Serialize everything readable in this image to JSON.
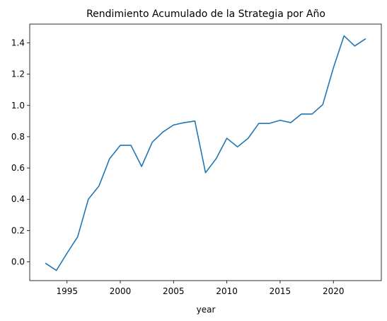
{
  "chart_data": {
    "type": "line",
    "title": "Rendimiento Acumulado de la Strategia por Año",
    "xlabel": "year",
    "ylabel": "",
    "xlim": [
      1991.5,
      2024.5
    ],
    "ylim": [
      -0.12,
      1.52
    ],
    "grid": false,
    "x_ticks": [
      1995,
      2000,
      2005,
      2010,
      2015,
      2020
    ],
    "y_ticks": [
      0.0,
      0.2,
      0.4,
      0.6,
      0.8,
      1.0,
      1.2,
      1.4
    ],
    "x_tick_labels": [
      "1995",
      "2000",
      "2005",
      "2010",
      "2015",
      "2020"
    ],
    "y_tick_labels": [
      "0.0",
      "0.2",
      "0.4",
      "0.6",
      "0.8",
      "1.0",
      "1.2",
      "1.4"
    ],
    "line_color": "#1f77b4",
    "series": [
      {
        "x": [
          1993,
          1994,
          1995,
          1996,
          1997,
          1998,
          1999,
          2000,
          2001,
          2002,
          2003,
          2004,
          2005,
          2006,
          2007,
          2008,
          2009,
          2010,
          2011,
          2012,
          2013,
          2014,
          2015,
          2016,
          2017,
          2018,
          2019,
          2020,
          2021,
          2022,
          2023
        ],
        "values": [
          -0.01,
          -0.055,
          0.055,
          0.16,
          0.4,
          0.485,
          0.66,
          0.745,
          0.745,
          0.61,
          0.765,
          0.83,
          0.875,
          0.89,
          0.9,
          0.57,
          0.66,
          0.79,
          0.735,
          0.79,
          0.885,
          0.885,
          0.905,
          0.89,
          0.945,
          0.945,
          1.005,
          1.24,
          1.445,
          1.38,
          1.425
        ]
      }
    ]
  }
}
